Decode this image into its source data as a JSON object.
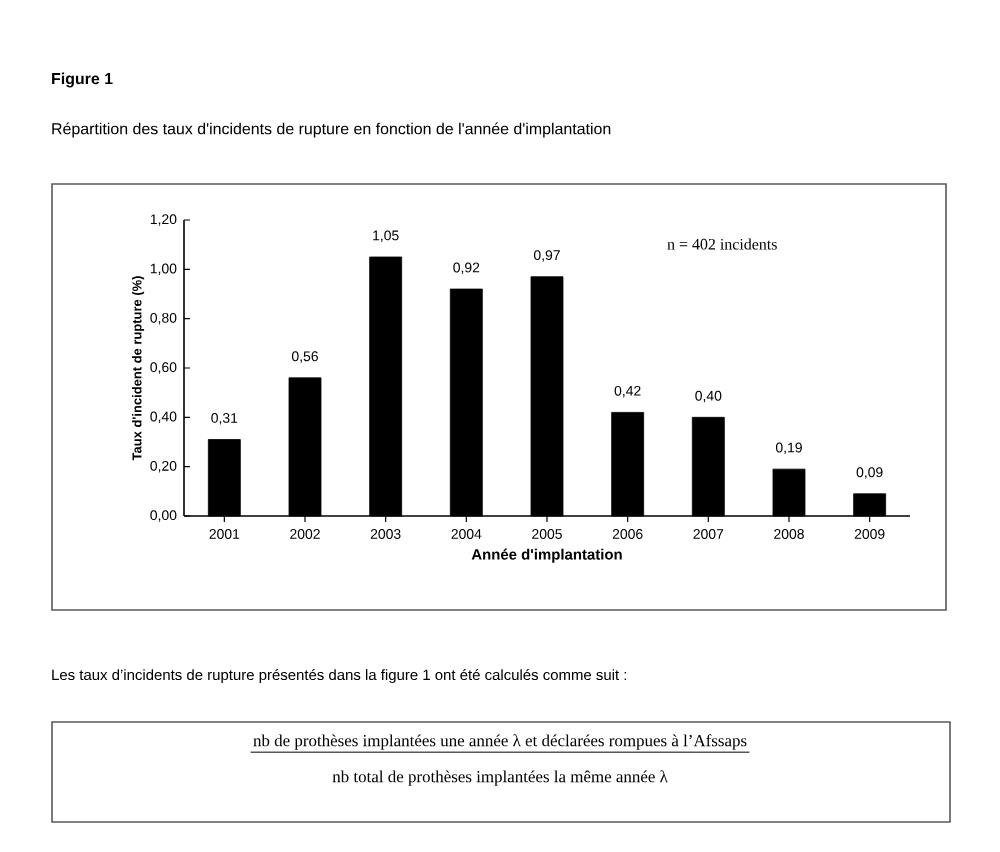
{
  "chart_data": {
    "type": "bar",
    "title": "Figure 1",
    "subtitle": "Répartition des taux d'incidents de rupture en fonction de l'année d'implantation",
    "xlabel": "Année d'implantation",
    "ylabel": "Taux d'incident de rupture (%)",
    "categories": [
      "2001",
      "2002",
      "2003",
      "2004",
      "2005",
      "2006",
      "2007",
      "2008",
      "2009"
    ],
    "values": [
      0.31,
      0.56,
      1.05,
      0.92,
      0.97,
      0.42,
      0.4,
      0.19,
      0.09
    ],
    "value_labels": [
      "0,31",
      "0,56",
      "1,05",
      "0,92",
      "0,97",
      "0,42",
      "0,40",
      "0,19",
      "0,09"
    ],
    "color": "#000000",
    "ylim": [
      0,
      1.2
    ],
    "yticks": [
      {
        "value": 0,
        "label": "0,00"
      },
      {
        "value": 0.2,
        "label": "0,20"
      },
      {
        "value": 0.4,
        "label": "0,40"
      },
      {
        "value": 0.6,
        "label": "0,60"
      },
      {
        "value": 0.8,
        "label": "0,80"
      },
      {
        "value": 1.0,
        "label": "1,00"
      },
      {
        "value": 1.2,
        "label": "1,20"
      }
    ],
    "annotations": [
      "n = 402 incidents",
      "Les taux d’incidents de rupture présentés dans la figure 1 ont été calculés comme suit :",
      "nb de prothèses implantées une année λ et déclarées rompues à l’Afssaps",
      "nb total de prothèses implantées la même année λ"
    ]
  }
}
